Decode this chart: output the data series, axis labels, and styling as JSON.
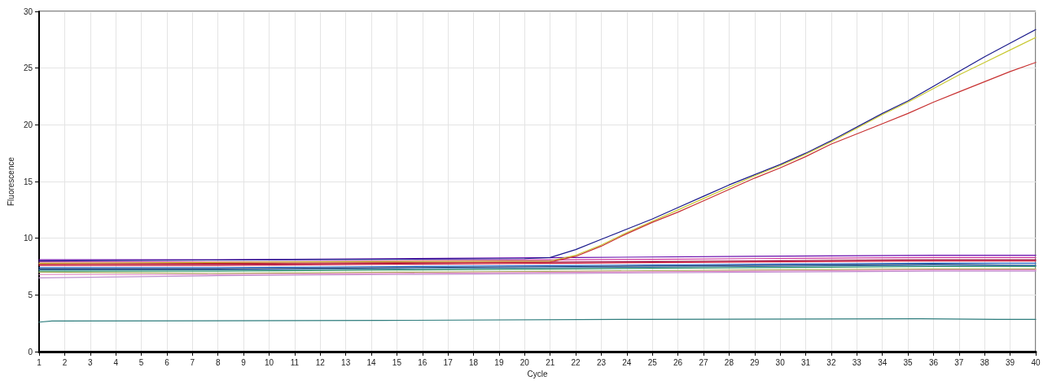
{
  "chart_data": {
    "type": "line",
    "xlabel": "Cycle",
    "ylabel": "Fluorescence",
    "xlim": [
      1,
      40
    ],
    "xticks": [
      1,
      2,
      3,
      4,
      5,
      6,
      7,
      8,
      9,
      10,
      11,
      12,
      13,
      14,
      15,
      16,
      17,
      18,
      19,
      20,
      21,
      22,
      23,
      24,
      25,
      26,
      27,
      28,
      29,
      30,
      31,
      32,
      33,
      34,
      35,
      36,
      37,
      38,
      39,
      40
    ],
    "ylim": [
      0,
      30
    ],
    "yticks": [
      0,
      5,
      10,
      15,
      20,
      25,
      30
    ],
    "grid": true,
    "marker": "none",
    "line_style": "solid",
    "x": [
      1,
      8,
      15,
      22,
      29,
      36,
      40
    ],
    "series": [
      {
        "color": "#6a0dad",
        "values": [
          8.1,
          8.1,
          8.2,
          8.3,
          8.4,
          8.5,
          8.5
        ]
      },
      {
        "color": "#cc3399",
        "values": [
          7.9,
          7.9,
          8.0,
          8.1,
          8.2,
          8.3,
          8.3
        ]
      },
      {
        "color": "#990033",
        "values": [
          7.7,
          7.7,
          7.8,
          7.9,
          8.0,
          8.1,
          8.1
        ]
      },
      {
        "color": "#d02040",
        "values": [
          7.6,
          7.6,
          7.7,
          7.8,
          7.9,
          8.0,
          8.0
        ]
      },
      {
        "color": "#1e64c8",
        "values": [
          7.4,
          7.4,
          7.5,
          7.6,
          7.7,
          7.8,
          7.8
        ]
      },
      {
        "color": "#1a3a6a",
        "values": [
          7.3,
          7.3,
          7.4,
          7.5,
          7.6,
          7.7,
          7.6
        ]
      },
      {
        "color": "#3a7ab0",
        "values": [
          7.2,
          7.2,
          7.3,
          7.4,
          7.5,
          7.6,
          7.6
        ]
      },
      {
        "color": "#339966",
        "values": [
          7.1,
          7.1,
          7.2,
          7.3,
          7.4,
          7.5,
          7.5
        ]
      },
      {
        "color": "#b0b060",
        "values": [
          7.0,
          6.9,
          7.0,
          7.1,
          7.2,
          7.3,
          7.3
        ]
      },
      {
        "color": "#e080c0",
        "values": [
          6.8,
          6.8,
          6.9,
          7.0,
          7.1,
          7.2,
          7.2
        ]
      },
      {
        "color": "#c090d0",
        "values": [
          6.5,
          6.7,
          6.8,
          6.9,
          7.0,
          7.1,
          7.1
        ]
      },
      {
        "color": "#2e7d7d",
        "x": [
          1,
          1.5,
          14.5,
          24.5,
          35.5,
          38.5,
          40
        ],
        "values": [
          2.6,
          2.7,
          2.75,
          2.85,
          2.9,
          2.85,
          2.85
        ]
      },
      {
        "color": "#1a1a8c",
        "x": [
          1,
          10,
          20,
          21,
          22,
          23,
          24,
          25,
          26,
          27,
          28,
          29,
          30,
          31,
          32,
          33,
          34,
          35,
          36,
          37,
          38,
          39,
          40
        ],
        "values": [
          8.0,
          8.1,
          8.2,
          8.3,
          9.0,
          9.9,
          10.8,
          11.7,
          12.7,
          13.7,
          14.7,
          15.6,
          16.5,
          17.5,
          18.6,
          19.8,
          21.0,
          22.1,
          23.4,
          24.7,
          26.0,
          27.2,
          28.4
        ]
      },
      {
        "color": "#c8c832",
        "x": [
          1,
          10,
          21,
          22,
          23,
          24,
          25,
          26,
          27,
          28,
          29,
          30,
          31,
          32,
          33,
          34,
          35,
          36,
          37,
          38,
          39,
          40
        ],
        "values": [
          7.8,
          7.9,
          8.0,
          8.5,
          9.4,
          10.5,
          11.5,
          12.5,
          13.5,
          14.5,
          15.5,
          16.4,
          17.4,
          18.5,
          19.7,
          20.9,
          22.0,
          23.2,
          24.4,
          25.5,
          26.6,
          27.7
        ]
      },
      {
        "color": "#c83232",
        "x": [
          1,
          10,
          21,
          22,
          23,
          24,
          25,
          26,
          27,
          28,
          29,
          30,
          31,
          32,
          33,
          34,
          35,
          36,
          37,
          38,
          39,
          40
        ],
        "values": [
          7.7,
          7.8,
          7.9,
          8.4,
          9.3,
          10.4,
          11.4,
          12.3,
          13.3,
          14.3,
          15.3,
          16.2,
          17.2,
          18.3,
          19.2,
          20.1,
          21.0,
          22.0,
          22.9,
          23.8,
          24.7,
          25.5
        ]
      }
    ]
  }
}
